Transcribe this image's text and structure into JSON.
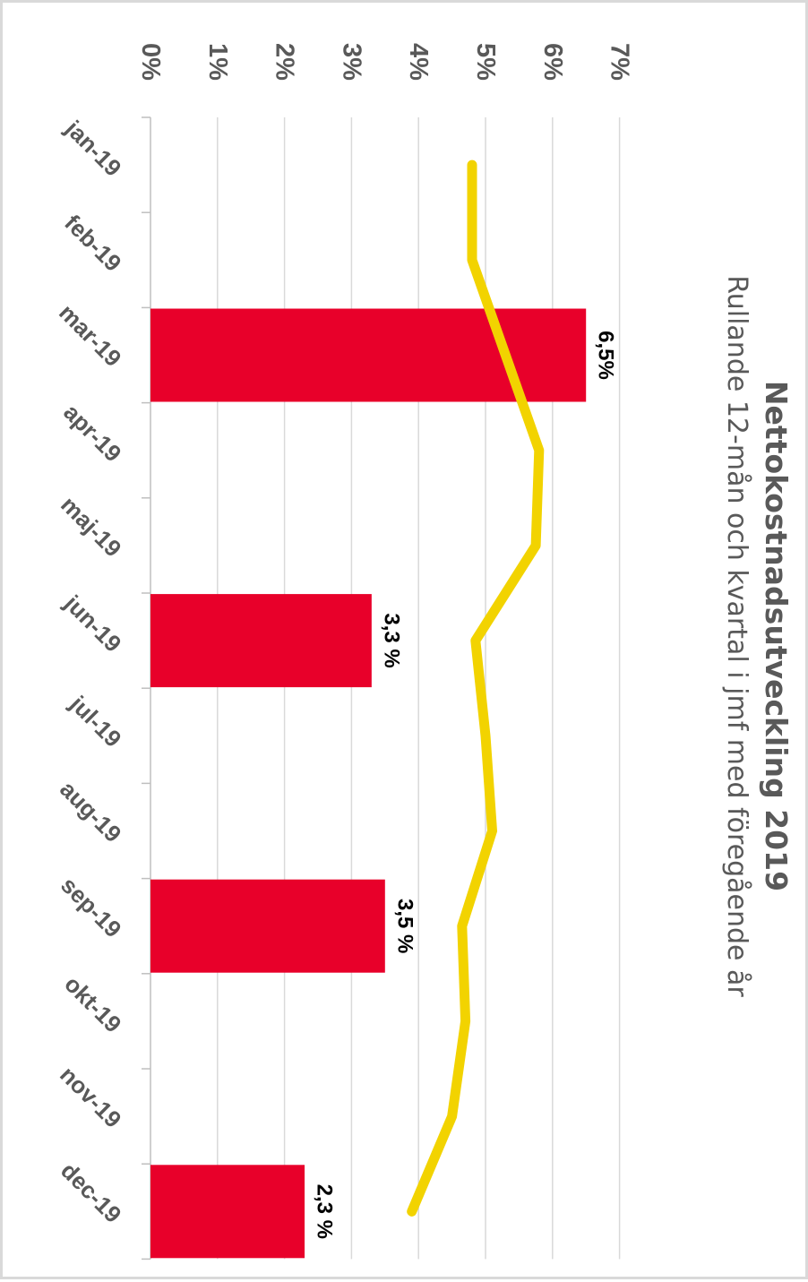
{
  "chart_data": {
    "type": "bar",
    "title": "Nettokostnadsutveckling 2019",
    "subtitle": "Rullande 12-mån och kvartal i jmf med föregående år",
    "categories": [
      "jan-19",
      "feb-19",
      "mar-19",
      "apr-19",
      "maj-19",
      "jun-19",
      "jul-19",
      "aug-19",
      "sep-19",
      "okt-19",
      "nov-19",
      "dec-19"
    ],
    "y_ticks": [
      "0%",
      "1%",
      "2%",
      "3%",
      "4%",
      "5%",
      "6%",
      "7%"
    ],
    "ylim": [
      0,
      7
    ],
    "grid": true,
    "rotated": "90deg clockwise",
    "series": [
      {
        "type": "bar",
        "color": "#e8002a",
        "values": [
          null,
          null,
          6.5,
          null,
          null,
          3.3,
          null,
          null,
          3.5,
          null,
          null,
          2.3
        ],
        "labels": [
          null,
          null,
          "6,5%",
          null,
          null,
          "3,3 %",
          null,
          null,
          "3,5 %",
          null,
          null,
          "2,3 %"
        ]
      },
      {
        "type": "line",
        "color": "#f2d300",
        "values": [
          4.8,
          4.8,
          5.3,
          5.8,
          5.75,
          4.85,
          5.0,
          5.1,
          4.65,
          4.7,
          4.5,
          3.9
        ]
      }
    ]
  }
}
